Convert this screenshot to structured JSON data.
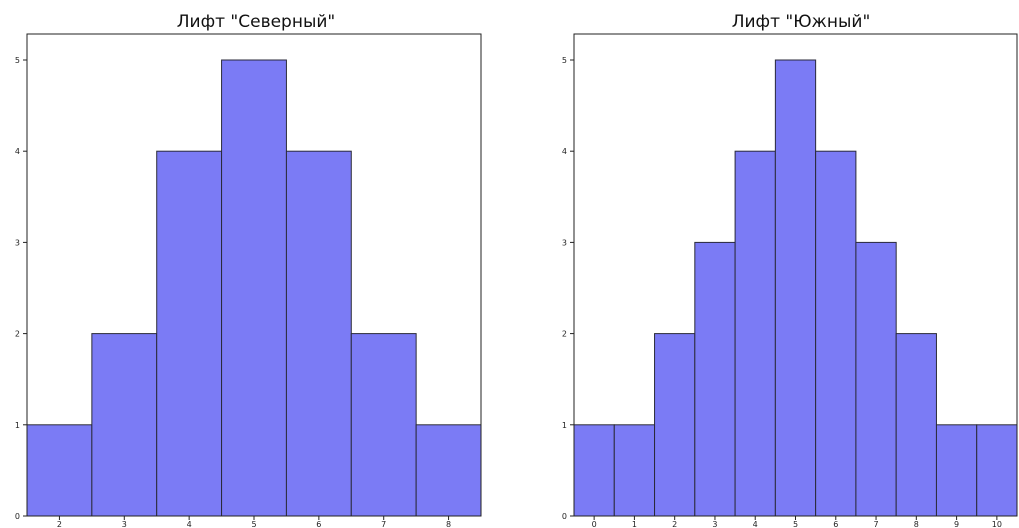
{
  "bar_color": "#7b7bf5",
  "chart_data": [
    {
      "type": "bar",
      "title": "Лифт \"Северный\"",
      "categories": [
        2,
        3,
        4,
        5,
        6,
        7,
        8
      ],
      "values": [
        1,
        2,
        4,
        5,
        4,
        2,
        1
      ],
      "xticks": [
        "2",
        "3",
        "4",
        "5",
        "6",
        "7",
        "8"
      ],
      "yticks": [
        "0",
        "1",
        "2",
        "3",
        "4",
        "5"
      ],
      "xlim": [
        1.5,
        8.5
      ],
      "ylim": [
        0,
        5
      ],
      "xlabel": "",
      "ylabel": "",
      "grid": false
    },
    {
      "type": "bar",
      "title": "Лифт \"Южный\"",
      "categories": [
        0,
        1,
        2,
        3,
        4,
        5,
        6,
        7,
        8,
        9,
        10
      ],
      "values": [
        1,
        1,
        2,
        3,
        4,
        5,
        4,
        3,
        2,
        1,
        1
      ],
      "xticks": [
        "0",
        "1",
        "2",
        "3",
        "4",
        "5",
        "6",
        "7",
        "8",
        "9",
        "10"
      ],
      "yticks": [
        "0",
        "1",
        "2",
        "3",
        "4",
        "5"
      ],
      "xlim": [
        -0.5,
        10.5
      ],
      "ylim": [
        0,
        5
      ],
      "xlabel": "",
      "ylabel": "",
      "grid": false
    }
  ]
}
